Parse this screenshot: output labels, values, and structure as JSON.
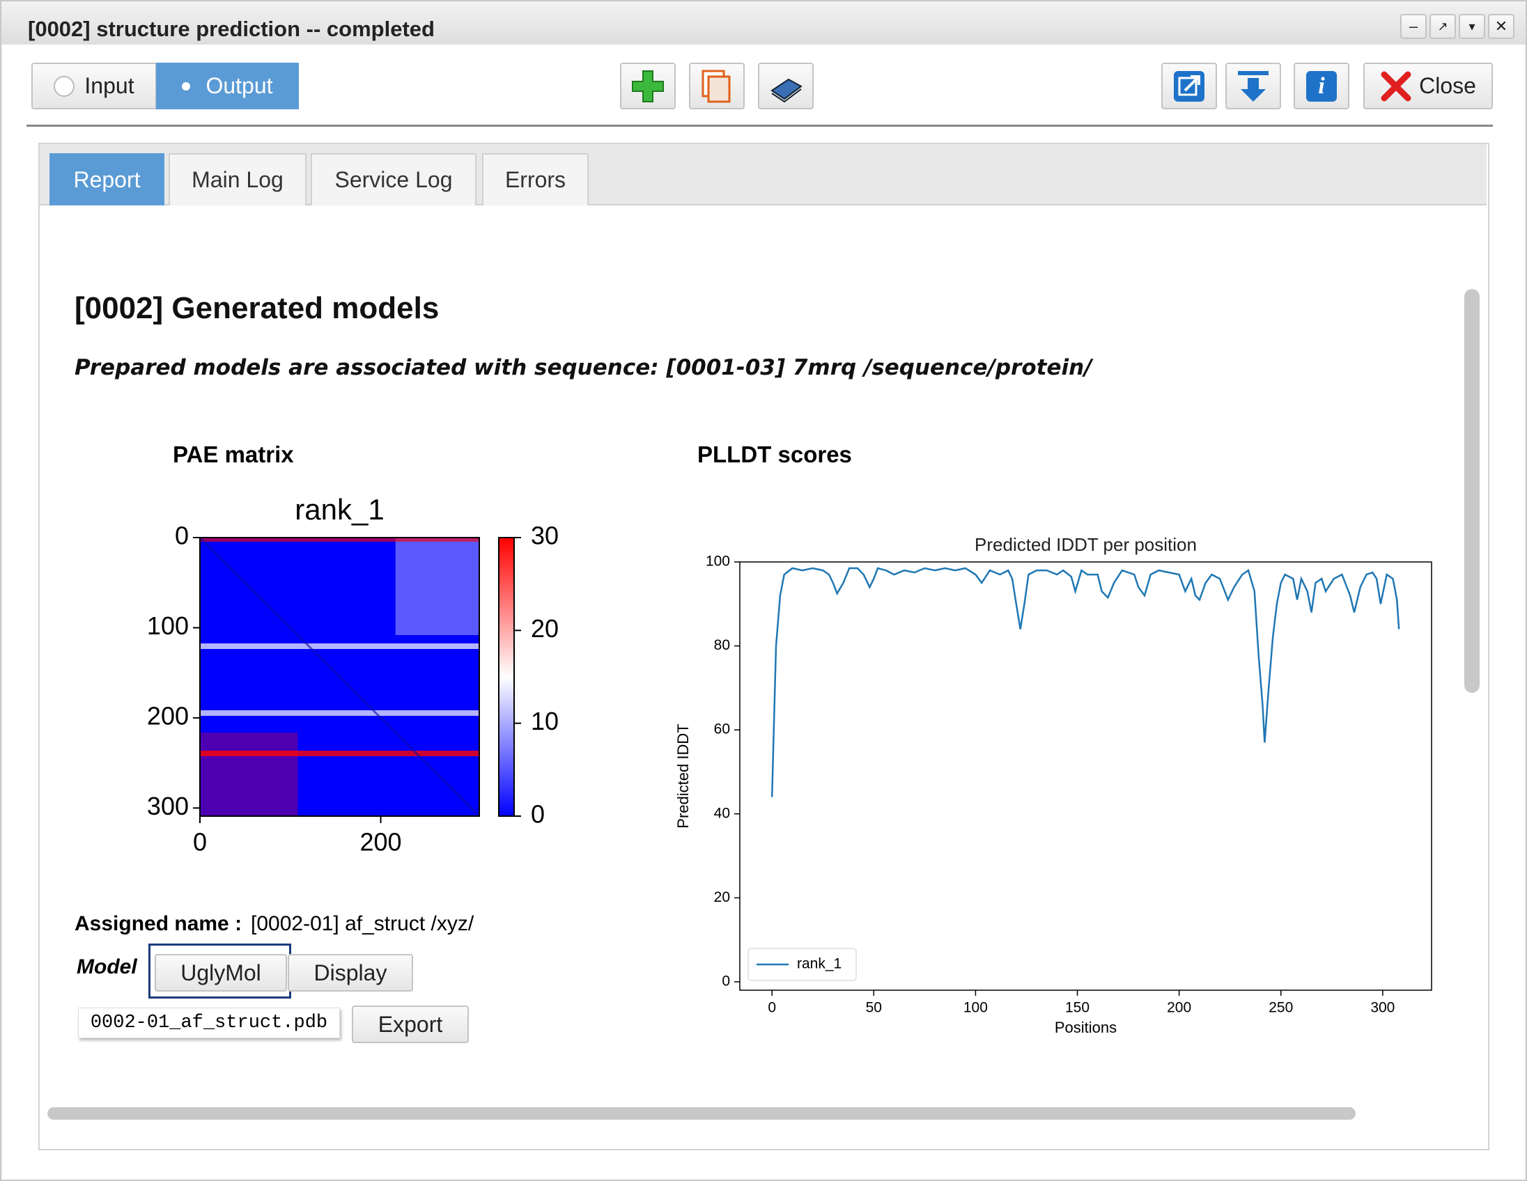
{
  "window": {
    "title": "[0002] structure prediction -- completed",
    "buttons": {
      "input": "Input",
      "output": "Output",
      "close": "Close"
    }
  },
  "tabs": [
    "Report",
    "Main Log",
    "Service Log",
    "Errors"
  ],
  "report": {
    "heading": "[0002] Generated models",
    "subtitle": "Prepared models are associated with sequence: [0001-03] 7mrq /sequence/protein/",
    "pae_title": "PAE matrix",
    "plddt_title": "PLLDT scores",
    "assigned_label": "Assigned name :",
    "assigned_value": "[0002-01] af_struct /xyz/",
    "model_label": "Model",
    "buttons": [
      "UglyMol",
      "Display",
      "Export"
    ],
    "file": "0002-01_af_struct.pdb"
  },
  "chart_data": [
    {
      "type": "heatmap",
      "title": "rank_1",
      "inverted_y": true,
      "xlim": [
        0,
        309
      ],
      "ylim": [
        0,
        309
      ],
      "xticks": [
        0,
        200
      ],
      "yticks": [
        0,
        100,
        200,
        300
      ],
      "colorbar": {
        "lim": [
          0,
          30
        ],
        "ticks": [
          0,
          10,
          20,
          30
        ],
        "colors": [
          "#0000ff",
          "#ffffff",
          "#ff0000"
        ]
      }
    },
    {
      "type": "line",
      "title": "Predicted IDDT per position",
      "xlabel": "Positions",
      "ylabel": "Predicted IDDT",
      "x": [
        0,
        2,
        4,
        6,
        10,
        15,
        20,
        25,
        28,
        30,
        32,
        35,
        38,
        42,
        45,
        48,
        50,
        52,
        56,
        60,
        65,
        70,
        75,
        80,
        85,
        90,
        95,
        100,
        103,
        107,
        112,
        116,
        118,
        120,
        122,
        124,
        126,
        130,
        135,
        140,
        143,
        147,
        149,
        152,
        155,
        160,
        162,
        165,
        168,
        172,
        178,
        180,
        183,
        186,
        190,
        195,
        200,
        203,
        206,
        208,
        210,
        213,
        216,
        220,
        224,
        227,
        231,
        234,
        237,
        239,
        241,
        242,
        244,
        246,
        248,
        250,
        252,
        256,
        258,
        260,
        263,
        265,
        267,
        270,
        272,
        276,
        280,
        284,
        286,
        289,
        292,
        295,
        297,
        299,
        302,
        305,
        307,
        308
      ],
      "series": [
        {
          "name": "rank_1",
          "color": "#1f77b4",
          "values": [
            44,
            80,
            92,
            97,
            98.5,
            98,
            98.5,
            98,
            97,
            95,
            92.5,
            95,
            98.5,
            98.5,
            97,
            94,
            96,
            98.5,
            98,
            97,
            98,
            97.5,
            98.5,
            98,
            98.5,
            98,
            98.5,
            97,
            95,
            98,
            97,
            98,
            96,
            90,
            84,
            90,
            97,
            98,
            98,
            97,
            98,
            96.5,
            93,
            98,
            97,
            97,
            93,
            91.5,
            95,
            98,
            97,
            94,
            92,
            97,
            98,
            97.5,
            97,
            93,
            96,
            92,
            91,
            95,
            97,
            96,
            91,
            94,
            97,
            98,
            93,
            78,
            66,
            57,
            70,
            82,
            90,
            95,
            97,
            96,
            91,
            96,
            93,
            88,
            95,
            96,
            93,
            96,
            97,
            92,
            88,
            94,
            97,
            97.5,
            96,
            90,
            97,
            96,
            91,
            84
          ]
        }
      ],
      "xlim": [
        -15.8,
        324
      ],
      "ylim": [
        -2,
        100
      ],
      "xticks": [
        0,
        50,
        100,
        150,
        200,
        250,
        300
      ],
      "yticks": [
        0,
        20,
        40,
        60,
        80,
        100
      ],
      "legend": "lower left"
    }
  ]
}
